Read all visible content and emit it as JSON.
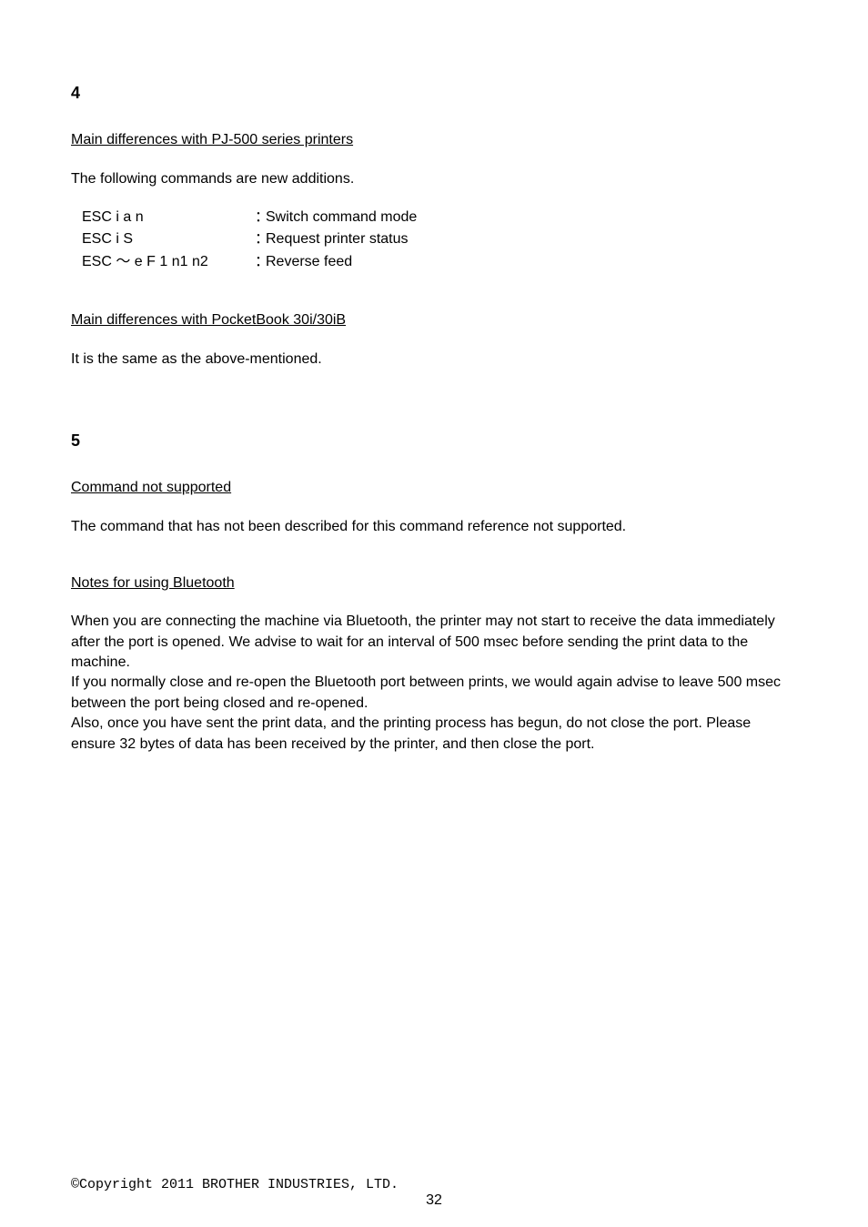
{
  "section4": {
    "num": "4",
    "heading1": "Main differences with PJ-500 series printers",
    "intro": "The following commands are new additions.",
    "commands": [
      {
        "name": "ESC i a n",
        "sep": "：",
        "desc": "Switch command mode"
      },
      {
        "name": "ESC i S",
        "sep": "：",
        "desc": "Request printer status"
      },
      {
        "name": "ESC ～ e F 1 n1 n2",
        "sep": "：",
        "desc": "Reverse feed"
      }
    ],
    "heading2": "Main differences with PocketBook 30i/30iB",
    "body2": "It is the same as the above-mentioned."
  },
  "section5": {
    "num": "5",
    "heading1": "Command not supported",
    "body1": "The command that has not been described for this command reference not supported.",
    "heading2": "Notes for using Bluetooth",
    "body2": "When you are connecting the machine via Bluetooth, the printer may not start to receive the data immediately after the port is opened. We advise to wait for an interval of 500 msec before sending the print data to the machine.",
    "body3": "If you normally close and re-open the Bluetooth port between prints, we would again advise to leave 500 msec between the port being closed and re-opened.",
    "body4": "Also, once you have sent the print data, and the printing process has begun, do not close the port. Please ensure 32 bytes of data has been received by the printer, and then close the port."
  },
  "footer": {
    "copyright": "©Copyright 2011 BROTHER INDUSTRIES, LTD.",
    "page": "32"
  }
}
